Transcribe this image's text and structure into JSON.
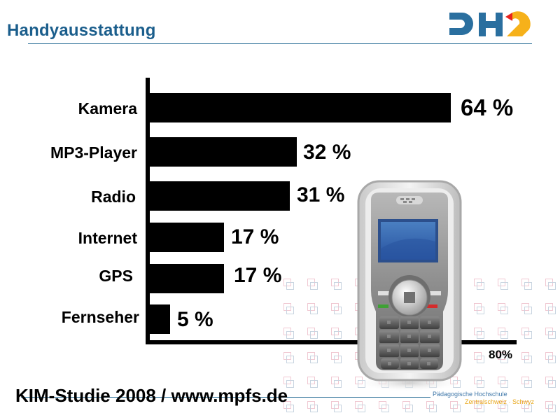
{
  "header": {
    "title": "Handyausstattung",
    "logo_alt": "PHZ"
  },
  "colors": {
    "title": "#1b5e8c",
    "logo_blue": "#2a6f9f",
    "logo_red": "#e8231e",
    "logo_yellow": "#f6b11a",
    "bar": "#000000",
    "inst_blue": "#3d76a8",
    "inst_yellow": "#e8a81c"
  },
  "chart_data": {
    "type": "bar",
    "orientation": "horizontal",
    "title": "Handyausstattung",
    "categories": [
      "Kamera",
      "MP3-Player",
      "Radio",
      "Internet",
      "GPS",
      "Fernseher"
    ],
    "values": [
      64,
      32,
      31,
      17,
      17,
      5
    ],
    "value_labels": [
      "64 %",
      "32 %",
      "31 %",
      "17 %",
      "17 %",
      "5 %"
    ],
    "xlabel": "",
    "ylabel": "",
    "xlim": [
      0,
      80
    ],
    "x_tick_labels": [
      "80%"
    ],
    "unit": "%",
    "grid": false,
    "legend": "none"
  },
  "footer": {
    "source": "KIM-Studie 2008 / www.mpfs.de",
    "institution_line1": "Pädagogische Hochschule",
    "institution_line2": "Zentralschweiz · Schwyz"
  },
  "illustration": {
    "icon": "mobile-phone-icon"
  }
}
